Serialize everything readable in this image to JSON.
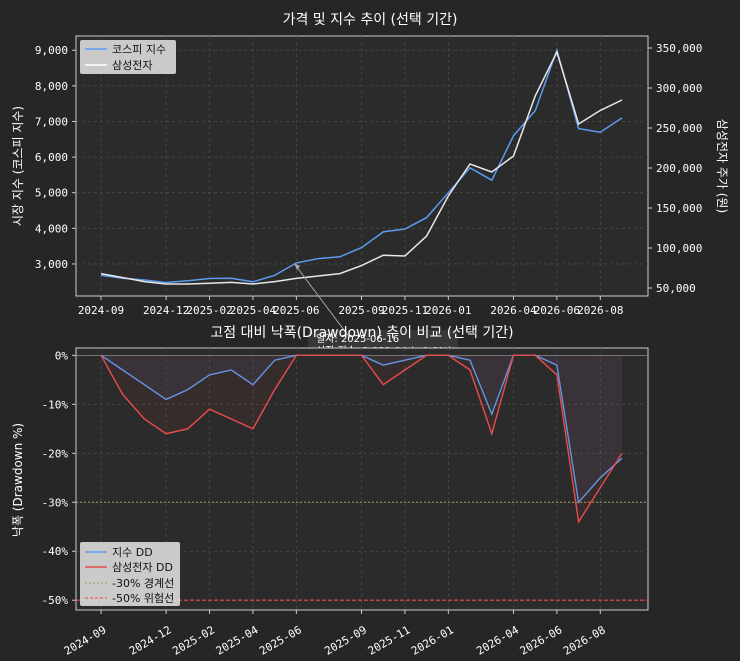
{
  "figure": {
    "top_title": "가격 및 지수 추이 (선택 기간)",
    "bottom_title": "고점 대비 낙폭(Drawdown) 추이 비교 (선택 기간)"
  },
  "colors": {
    "background": "#262626",
    "panel": "#2b2b2b",
    "index_line": "#5b9bf0",
    "stock_line": "#e8e8e8",
    "index_dd": "#5b9bf0",
    "stock_dd": "#e84c4c",
    "warn_line": "#a89a5a",
    "danger_line": "#e84c4c",
    "left_label": "#5b9bf0"
  },
  "annotation": {
    "line1": "일자: 2025-06-16",
    "line2": "시장 지수: 2,931.04 (+0.8%)"
  },
  "chart_data": [
    {
      "type": "line",
      "title": "가격 및 지수 추이 (선택 기간)",
      "ylabel_left": "시장 지수 (코스피 지수)",
      "ylabel_right": "삼성전자 주가 (원)",
      "x_ticks": [
        "2024-09",
        "2024-12",
        "2025-02",
        "2025-04",
        "2025-06",
        "2025-09",
        "2025-11",
        "2026-01",
        "2026-04",
        "2026-06",
        "2026-08"
      ],
      "y_left_ticks": [
        "3,000",
        "4,000",
        "5,000",
        "6,000",
        "7,000",
        "8,000",
        "9,000"
      ],
      "y_right_ticks": [
        "50,000",
        "100,000",
        "150,000",
        "200,000",
        "250,000",
        "300,000",
        "350,000"
      ],
      "ylim_left": [
        2100,
        9400
      ],
      "ylim_right": [
        40000,
        365000
      ],
      "legend": [
        "코스피 지수",
        "삼성전자"
      ],
      "legend_position": "top-left",
      "grid": true,
      "x": [
        "2024-09",
        "2024-10",
        "2024-11",
        "2024-12",
        "2025-01",
        "2025-02",
        "2025-03",
        "2025-04",
        "2025-05",
        "2025-06",
        "2025-07",
        "2025-08",
        "2025-09",
        "2025-10",
        "2025-11",
        "2025-12",
        "2026-01",
        "2026-02",
        "2026-03",
        "2026-04",
        "2026-05",
        "2026-06",
        "2026-07",
        "2026-08",
        "2026-09"
      ],
      "series": [
        {
          "name": "코스피 지수",
          "axis": "left",
          "values": [
            2680,
            2600,
            2550,
            2480,
            2530,
            2590,
            2600,
            2500,
            2680,
            3030,
            3150,
            3200,
            3460,
            3900,
            3980,
            4300,
            5000,
            5700,
            5350,
            6600,
            7300,
            9000,
            6800,
            6700,
            7100
          ]
        },
        {
          "name": "삼성전자",
          "axis": "right",
          "values": [
            68000,
            63000,
            58000,
            55000,
            55000,
            56000,
            57000,
            55000,
            58000,
            62000,
            65000,
            68000,
            78000,
            91000,
            90000,
            115000,
            165000,
            205000,
            195000,
            215000,
            290000,
            345000,
            255000,
            272000,
            285000
          ]
        }
      ]
    },
    {
      "type": "area",
      "title": "고점 대비 낙폭(Drawdown) 추이 비교 (선택 기간)",
      "ylabel": "낙폭 (Drawdown %)",
      "x_ticks": [
        "2024-09",
        "2024-12",
        "2025-02",
        "2025-04",
        "2025-06",
        "2025-09",
        "2025-11",
        "2026-01",
        "2026-04",
        "2026-06",
        "2026-08"
      ],
      "y_ticks": [
        "0%",
        "-10%",
        "-20%",
        "-30%",
        "-40%",
        "-50%"
      ],
      "ylim": [
        -52,
        1.5
      ],
      "legend": [
        "지수 DD",
        "삼성전자 DD",
        "-30% 경계선",
        "-50% 위험선"
      ],
      "legend_position": "bottom-left",
      "grid": true,
      "thresholds": [
        -30,
        -50
      ],
      "x": [
        "2024-09",
        "2024-10",
        "2024-11",
        "2024-12",
        "2025-01",
        "2025-02",
        "2025-03",
        "2025-04",
        "2025-05",
        "2025-06",
        "2025-07",
        "2025-08",
        "2025-09",
        "2025-10",
        "2025-11",
        "2025-12",
        "2026-01",
        "2026-02",
        "2026-03",
        "2026-04",
        "2026-05",
        "2026-06",
        "2026-07",
        "2026-08",
        "2026-09"
      ],
      "series": [
        {
          "name": "지수 DD",
          "values": [
            0,
            -3,
            -6,
            -9,
            -7,
            -4,
            -3,
            -6,
            -1,
            0,
            0,
            0,
            0,
            -2,
            -1,
            0,
            0,
            -1,
            -12,
            0,
            0,
            -2,
            -30,
            -25,
            -21
          ]
        },
        {
          "name": "삼성전자 DD",
          "values": [
            0,
            -8,
            -13,
            -16,
            -15,
            -11,
            -13,
            -15,
            -7,
            0,
            0,
            0,
            0,
            -6,
            -3,
            0,
            0,
            -3,
            -16,
            0,
            0,
            -4,
            -34,
            -27,
            -20
          ]
        }
      ]
    }
  ]
}
